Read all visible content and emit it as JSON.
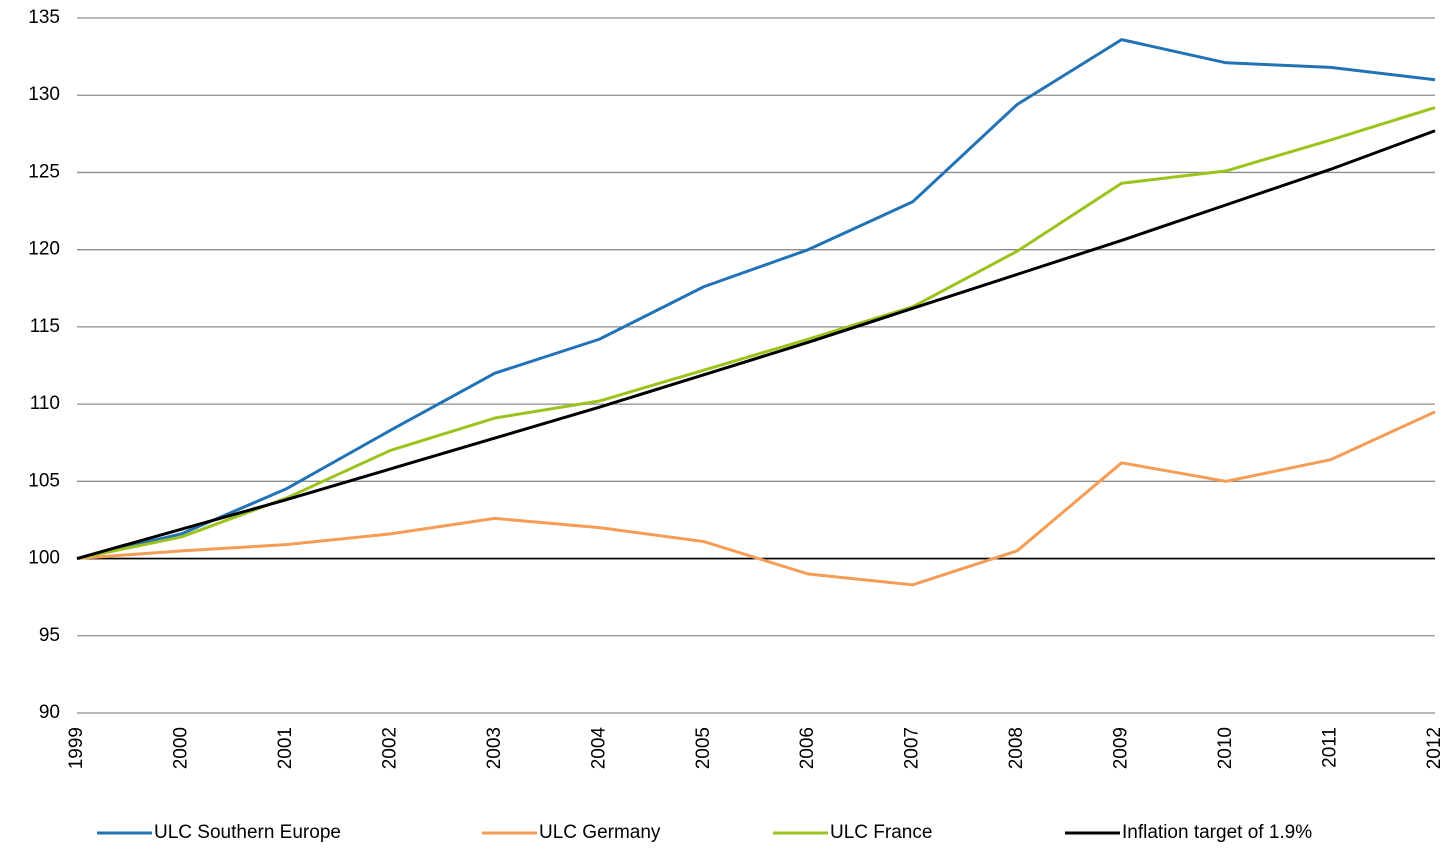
{
  "chart_data": {
    "type": "line",
    "categories": [
      "1999",
      "2000",
      "2001",
      "2002",
      "2003",
      "2004",
      "2005",
      "2006",
      "2007",
      "2008",
      "2009",
      "2010",
      "2011",
      "2012"
    ],
    "series": [
      {
        "name": "ULC Southern Europe",
        "color": "#2272b6",
        "values": [
          100,
          101.6,
          104.5,
          108.3,
          112.0,
          114.2,
          117.6,
          120.0,
          123.1,
          129.4,
          133.6,
          132.1,
          131.8,
          131.0
        ]
      },
      {
        "name": "ULC Germany",
        "color": "#f59d56",
        "values": [
          100,
          100.5,
          100.9,
          101.6,
          102.6,
          102.0,
          101.1,
          99.0,
          98.3,
          100.5,
          106.2,
          105.0,
          106.4,
          109.5
        ]
      },
      {
        "name": "ULC France",
        "color": "#9bc31c",
        "values": [
          100,
          101.4,
          103.9,
          107.0,
          109.1,
          110.2,
          112.2,
          114.2,
          116.3,
          119.9,
          124.3,
          125.1,
          127.1,
          129.2
        ]
      },
      {
        "name": "Inflation target of 1.9%",
        "color": "#000000",
        "values": [
          100,
          101.9,
          103.8,
          105.8,
          107.8,
          109.8,
          111.9,
          114.0,
          116.2,
          118.4,
          120.6,
          122.9,
          125.2,
          127.7
        ]
      }
    ],
    "ylim": [
      90,
      135
    ],
    "yticks": [
      90,
      95,
      100,
      105,
      110,
      115,
      120,
      125,
      130,
      135
    ],
    "grid": true,
    "reference_line": 100,
    "legend": "bottom"
  }
}
